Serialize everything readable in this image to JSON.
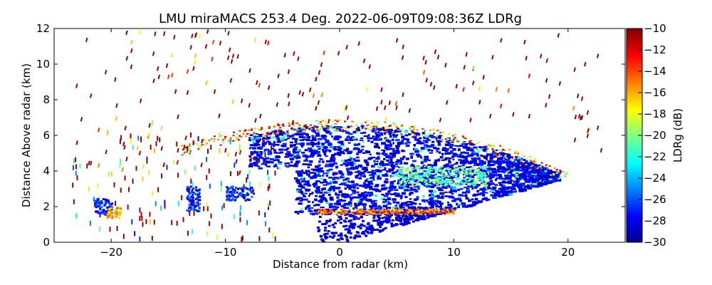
{
  "chart_data": {
    "type": "heatmap",
    "title": "LMU miraMACS 253.4 Deg. 2022-06-09T09:08:36Z  LDRg",
    "xlabel": "Distance from radar (km)",
    "ylabel": "Distance Above radar  (km)",
    "xlim": [
      -25,
      25
    ],
    "ylim": [
      0,
      12
    ],
    "x_ticks": [
      -20,
      -10,
      0,
      10,
      20
    ],
    "y_ticks": [
      0,
      2,
      4,
      6,
      8,
      10,
      12
    ],
    "colorbar": {
      "label": "LDRg (dB)",
      "range": [
        -30,
        -10
      ],
      "ticks": [
        -30,
        -28,
        -26,
        -24,
        -22,
        -20,
        -18,
        -16,
        -14,
        -12,
        -10
      ],
      "colormap": [
        "#00008f",
        "#0000ff",
        "#0080ff",
        "#00ffff",
        "#80ff80",
        "#ffff00",
        "#ff8000",
        "#ff0000",
        "#800000"
      ]
    },
    "regions": [
      {
        "x": [
          -8,
          20
        ],
        "y": [
          2,
          6.5
        ],
        "ldr": -29,
        "note": ""
      },
      {
        "x": [
          5,
          13
        ],
        "y": [
          3.2,
          4.2
        ],
        "ldr": -21,
        "note": ""
      },
      {
        "x": [
          -2,
          10
        ],
        "y": [
          1.5,
          1.9
        ],
        "ldr": -15,
        "note": ""
      },
      {
        "x": [
          -20,
          8
        ],
        "y": [
          6,
          7.2
        ],
        "ldr": -16,
        "note": ""
      }
    ]
  }
}
